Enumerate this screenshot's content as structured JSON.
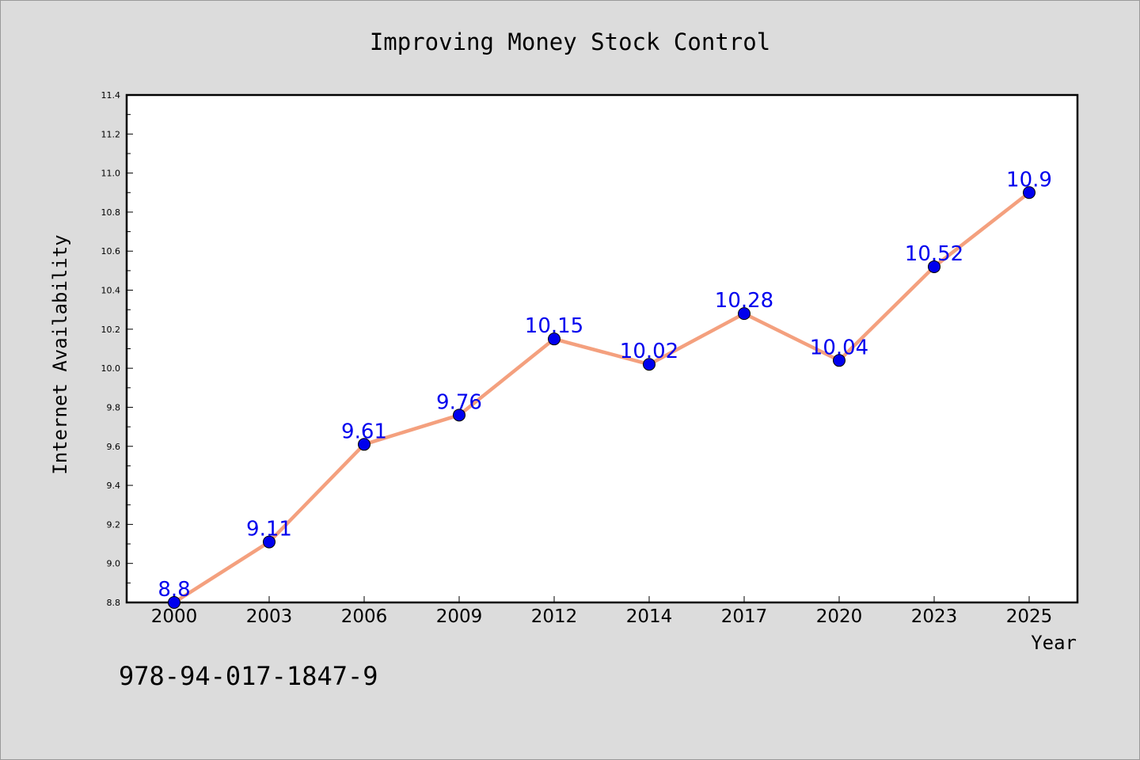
{
  "chart_data": {
    "type": "line",
    "title": "Improving Money Stock Control",
    "xlabel": "Year",
    "ylabel": "Internet Availability",
    "categories": [
      "2000",
      "2003",
      "2006",
      "2009",
      "2012",
      "2014",
      "2017",
      "2020",
      "2023",
      "2025"
    ],
    "series": [
      {
        "values": [
          8.8,
          9.11,
          9.61,
          9.76,
          10.15,
          10.02,
          10.28,
          10.04,
          10.52,
          10.9
        ],
        "data_labels": [
          "8.8",
          "9.11",
          "9.61",
          "9.76",
          "10.15",
          "10.02",
          "10.28",
          "10.04",
          "10.52",
          "10.9"
        ],
        "line_color": "#f4a07e",
        "marker_color": "#0000ee",
        "label_color": "#0000ee"
      }
    ],
    "ylim": [
      8.8,
      11.4
    ],
    "yticks": [
      "8.8",
      "9.0",
      "9.2",
      "9.4",
      "9.6",
      "9.8",
      "10.0",
      "10.2",
      "10.4",
      "10.6",
      "10.8",
      "11.0",
      "11.2",
      "11.4"
    ],
    "grid": false,
    "legend": "none"
  },
  "annotation": "978-94-017-1847-9"
}
